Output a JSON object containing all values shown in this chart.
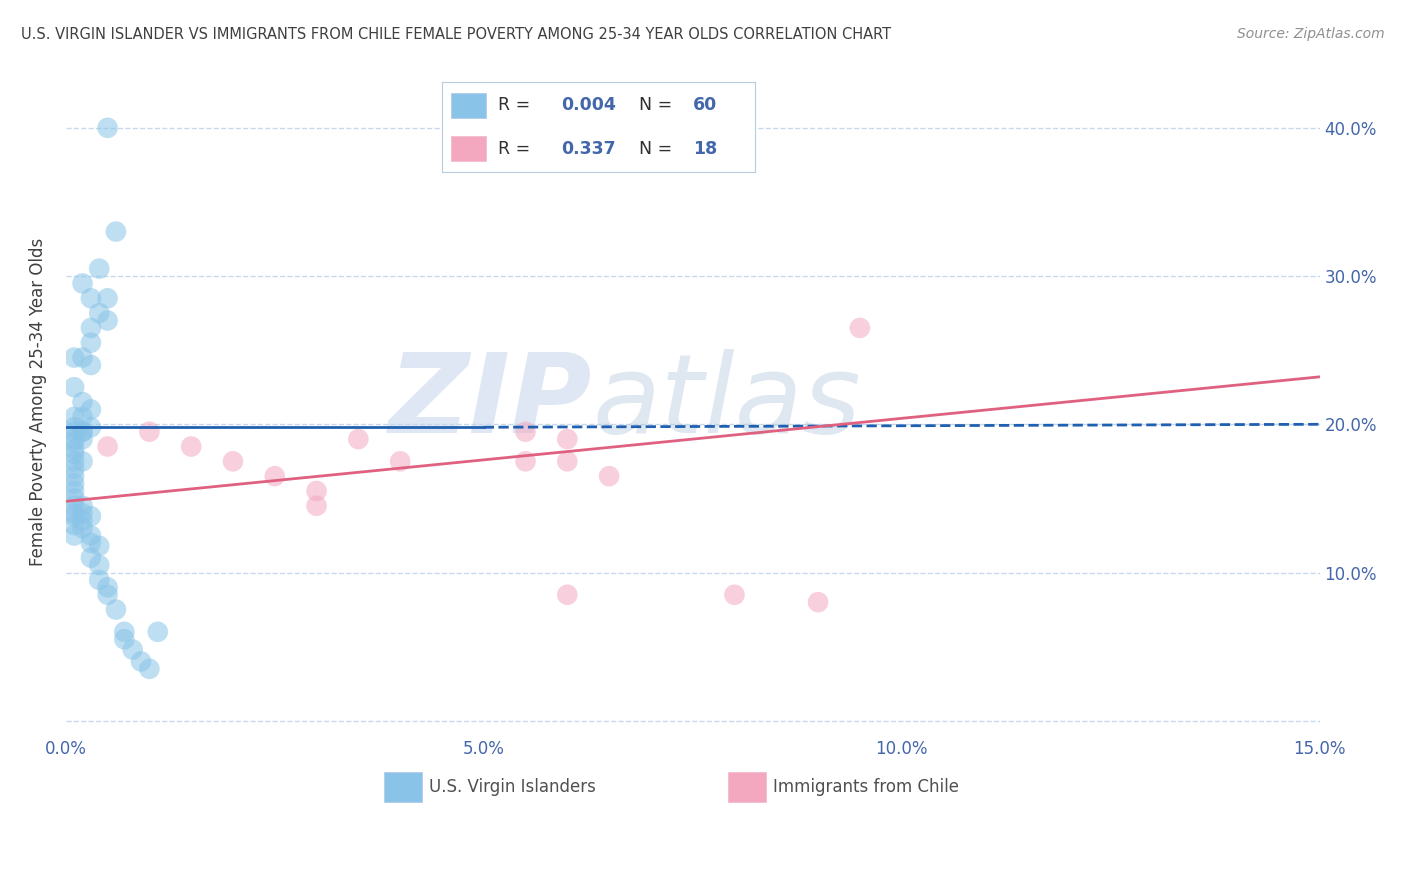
{
  "title": "U.S. VIRGIN ISLANDER VS IMMIGRANTS FROM CHILE FEMALE POVERTY AMONG 25-34 YEAR OLDS CORRELATION CHART",
  "source": "Source: ZipAtlas.com",
  "ylabel": "Female Poverty Among 25-34 Year Olds",
  "xlim": [
    0.0,
    0.15
  ],
  "ylim": [
    -0.01,
    0.44
  ],
  "yticks": [
    0.0,
    0.1,
    0.2,
    0.3,
    0.4
  ],
  "ytick_labels_left": [
    "",
    "",
    "",
    "",
    ""
  ],
  "ytick_labels_right": [
    "",
    "10.0%",
    "20.0%",
    "30.0%",
    "40.0%"
  ],
  "xticks": [
    0.0,
    0.05,
    0.1,
    0.15
  ],
  "xtick_labels": [
    "0.0%",
    "5.0%",
    "10.0%",
    "15.0%"
  ],
  "watermark": "ZIPatlas",
  "blue_scatter_x": [
    0.005,
    0.006,
    0.004,
    0.005,
    0.003,
    0.002,
    0.003,
    0.004,
    0.005,
    0.003,
    0.001,
    0.002,
    0.003,
    0.001,
    0.002,
    0.001,
    0.002,
    0.003,
    0.002,
    0.003,
    0.001,
    0.001,
    0.002,
    0.001,
    0.002,
    0.001,
    0.001,
    0.001,
    0.001,
    0.002,
    0.001,
    0.001,
    0.001,
    0.001,
    0.001,
    0.001,
    0.001,
    0.001,
    0.001,
    0.001,
    0.002,
    0.002,
    0.003,
    0.002,
    0.002,
    0.003,
    0.003,
    0.004,
    0.003,
    0.004,
    0.004,
    0.005,
    0.005,
    0.006,
    0.007,
    0.007,
    0.008,
    0.009,
    0.01,
    0.011
  ],
  "blue_scatter_y": [
    0.4,
    0.33,
    0.305,
    0.285,
    0.265,
    0.295,
    0.285,
    0.275,
    0.27,
    0.255,
    0.245,
    0.245,
    0.24,
    0.225,
    0.215,
    0.205,
    0.205,
    0.21,
    0.195,
    0.198,
    0.198,
    0.195,
    0.195,
    0.19,
    0.19,
    0.188,
    0.183,
    0.18,
    0.175,
    0.175,
    0.17,
    0.165,
    0.16,
    0.155,
    0.15,
    0.145,
    0.14,
    0.138,
    0.132,
    0.125,
    0.145,
    0.14,
    0.138,
    0.135,
    0.13,
    0.125,
    0.12,
    0.118,
    0.11,
    0.105,
    0.095,
    0.09,
    0.085,
    0.075,
    0.06,
    0.055,
    0.048,
    0.04,
    0.035,
    0.06
  ],
  "pink_scatter_x": [
    0.005,
    0.01,
    0.015,
    0.02,
    0.025,
    0.03,
    0.03,
    0.035,
    0.04,
    0.055,
    0.06,
    0.065,
    0.06,
    0.08,
    0.06,
    0.055,
    0.095,
    0.09
  ],
  "pink_scatter_y": [
    0.185,
    0.195,
    0.185,
    0.175,
    0.165,
    0.155,
    0.145,
    0.19,
    0.175,
    0.195,
    0.175,
    0.165,
    0.085,
    0.085,
    0.19,
    0.175,
    0.265,
    0.08
  ],
  "blue_line_x": [
    0.0,
    0.05,
    0.15
  ],
  "blue_line_y": [
    0.198,
    0.198,
    0.2
  ],
  "blue_line_solid_end": 0.05,
  "pink_line_x": [
    0.0,
    0.15
  ],
  "pink_line_y": [
    0.148,
    0.232
  ],
  "blue_color": "#89c4e8",
  "pink_color": "#f4a8c0",
  "blue_line_color": "#2060b0",
  "pink_line_color": "#e06080",
  "background_color": "#ffffff",
  "grid_color": "#c8d8ec",
  "title_color": "#404040",
  "source_color": "#909090",
  "axis_label_color": "#404040",
  "tick_color": "#4466aa",
  "watermark_color": "#c8d8e8"
}
